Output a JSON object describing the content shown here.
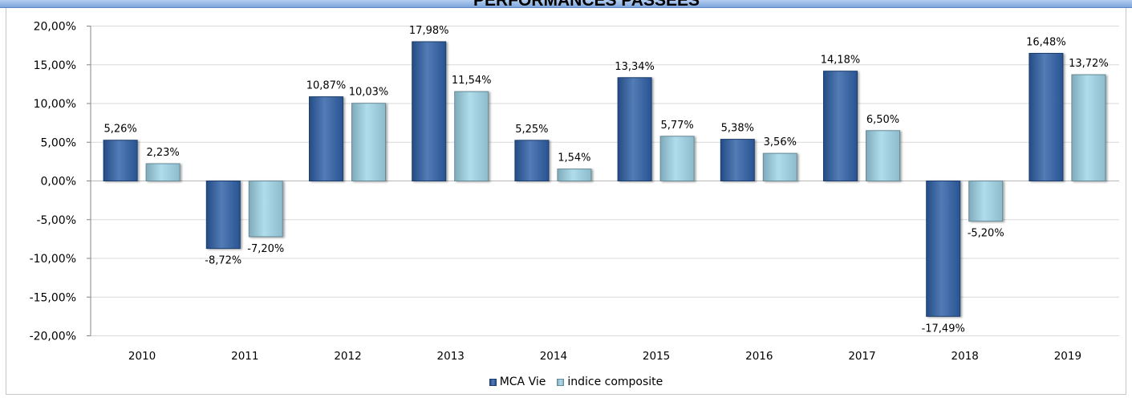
{
  "chart_data": {
    "type": "bar",
    "title": "PERFORMANCES PASSEES",
    "categories": [
      "2010",
      "2011",
      "2012",
      "2013",
      "2014",
      "2015",
      "2016",
      "2017",
      "2018",
      "2019"
    ],
    "series": [
      {
        "name": "MCA Vie",
        "color": "#2d5fa6",
        "values": [
          5.26,
          -8.72,
          10.87,
          17.98,
          5.25,
          13.34,
          5.38,
          14.18,
          -17.49,
          16.48
        ],
        "data_labels": [
          "5,26%",
          "-8,72%",
          "10,87%",
          "17,98%",
          "5,25%",
          "13,34%",
          "5,38%",
          "14,18%",
          "-17,49%",
          "16,48%"
        ]
      },
      {
        "name": "indice composite",
        "color": "#9fd5e8",
        "values": [
          2.23,
          -7.2,
          10.03,
          11.54,
          1.54,
          5.77,
          3.56,
          6.5,
          -5.2,
          13.72
        ],
        "data_labels": [
          "2,23%",
          "-7,20%",
          "10,03%",
          "11,54%",
          "1,54%",
          "5,77%",
          "3,56%",
          "6,50%",
          "-5,20%",
          "13,72%"
        ]
      }
    ],
    "ylim": [
      -20,
      20
    ],
    "y_ticks": [
      {
        "value": 20,
        "label": "20,00%"
      },
      {
        "value": 15,
        "label": "15,00%"
      },
      {
        "value": 10,
        "label": "10,00%"
      },
      {
        "value": 5,
        "label": "5,00%"
      },
      {
        "value": 0,
        "label": "0,00%"
      },
      {
        "value": -5,
        "label": "-5,00%"
      },
      {
        "value": -10,
        "label": "-10,00%"
      },
      {
        "value": -15,
        "label": "-15,00%"
      },
      {
        "value": -20,
        "label": "-20,00%"
      }
    ],
    "grid": true,
    "legend": "bottom"
  }
}
